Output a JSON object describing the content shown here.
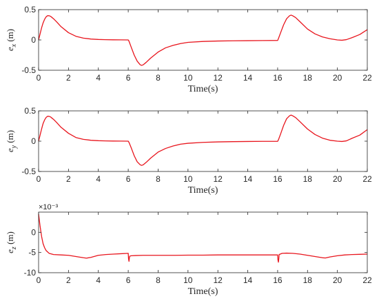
{
  "chart_data": [
    {
      "type": "line",
      "xlabel": "Time(s)",
      "ylabel": {
        "var": "e",
        "sub": "x",
        "unit": "(m)"
      },
      "xlim": [
        0,
        22
      ],
      "ylim": [
        -0.5,
        0.5
      ],
      "xticks": [
        0,
        2,
        4,
        6,
        8,
        10,
        12,
        14,
        16,
        18,
        20,
        22
      ],
      "yticks": [
        -0.5,
        0,
        0.5
      ],
      "ytick_labels": [
        "-0.5",
        "0",
        "0.5"
      ],
      "exponent_label": "",
      "grid": false,
      "series": [
        {
          "color": "#e8141c",
          "x": [
            0,
            0.1,
            0.2,
            0.3,
            0.4,
            0.5,
            0.6,
            0.7,
            0.8,
            0.9,
            1.0,
            1.2,
            1.5,
            2.0,
            2.5,
            3.0,
            3.5,
            4.0,
            4.5,
            5.0,
            5.5,
            6.0,
            6.05,
            6.2,
            6.4,
            6.6,
            6.8,
            6.9,
            7.0,
            7.2,
            7.5,
            8.0,
            8.5,
            9.0,
            9.5,
            10.0,
            11.0,
            12.0,
            13.0,
            14.0,
            15.0,
            16.0,
            16.05,
            16.2,
            16.4,
            16.6,
            16.8,
            16.9,
            17.0,
            17.2,
            17.5,
            18.0,
            18.5,
            19.0,
            19.5,
            20.0,
            20.3,
            20.6,
            21.0,
            21.5,
            22.0
          ],
          "y": [
            0.0,
            0.1,
            0.2,
            0.28,
            0.34,
            0.38,
            0.4,
            0.4,
            0.39,
            0.37,
            0.35,
            0.3,
            0.22,
            0.12,
            0.06,
            0.03,
            0.015,
            0.008,
            0.004,
            0.002,
            0.001,
            0.0,
            -0.02,
            -0.12,
            -0.25,
            -0.35,
            -0.41,
            -0.42,
            -0.41,
            -0.37,
            -0.3,
            -0.2,
            -0.13,
            -0.09,
            -0.06,
            -0.04,
            -0.025,
            -0.018,
            -0.014,
            -0.012,
            -0.01,
            -0.008,
            0.02,
            0.12,
            0.25,
            0.35,
            0.4,
            0.41,
            0.4,
            0.37,
            0.3,
            0.18,
            0.1,
            0.05,
            0.02,
            0.0,
            -0.005,
            0.005,
            0.04,
            0.09,
            0.17
          ]
        }
      ]
    },
    {
      "type": "line",
      "xlabel": "Time(s)",
      "ylabel": {
        "var": "e",
        "sub": "y",
        "unit": "(m)"
      },
      "xlim": [
        0,
        22
      ],
      "ylim": [
        -0.5,
        0.5
      ],
      "xticks": [
        0,
        2,
        4,
        6,
        8,
        10,
        12,
        14,
        16,
        18,
        20,
        22
      ],
      "yticks": [
        -0.5,
        0,
        0.5
      ],
      "ytick_labels": [
        "-0.5",
        "0",
        "0.5"
      ],
      "exponent_label": "",
      "grid": false,
      "series": [
        {
          "color": "#e8141c",
          "x": [
            0,
            0.1,
            0.2,
            0.3,
            0.4,
            0.5,
            0.6,
            0.7,
            0.8,
            0.9,
            1.0,
            1.2,
            1.5,
            2.0,
            2.5,
            3.0,
            3.5,
            4.0,
            4.5,
            5.0,
            5.5,
            6.0,
            6.05,
            6.2,
            6.4,
            6.6,
            6.8,
            6.9,
            7.0,
            7.2,
            7.5,
            8.0,
            8.5,
            9.0,
            9.5,
            10.0,
            11.0,
            12.0,
            13.0,
            14.0,
            15.0,
            16.0,
            16.05,
            16.2,
            16.4,
            16.6,
            16.8,
            16.9,
            17.0,
            17.2,
            17.5,
            18.0,
            18.5,
            19.0,
            19.5,
            20.0,
            20.3,
            20.6,
            21.0,
            21.5,
            22.0
          ],
          "y": [
            0.0,
            0.1,
            0.2,
            0.29,
            0.35,
            0.39,
            0.41,
            0.41,
            0.4,
            0.38,
            0.36,
            0.31,
            0.23,
            0.13,
            0.06,
            0.03,
            0.015,
            0.008,
            0.004,
            0.002,
            0.001,
            0.0,
            -0.02,
            -0.11,
            -0.24,
            -0.34,
            -0.39,
            -0.4,
            -0.39,
            -0.35,
            -0.28,
            -0.18,
            -0.12,
            -0.08,
            -0.05,
            -0.035,
            -0.02,
            -0.012,
            -0.008,
            -0.005,
            -0.003,
            -0.002,
            0.02,
            0.12,
            0.26,
            0.37,
            0.42,
            0.43,
            0.42,
            0.39,
            0.32,
            0.2,
            0.11,
            0.05,
            0.015,
            0.0,
            -0.005,
            0.005,
            0.05,
            0.1,
            0.19
          ]
        }
      ]
    },
    {
      "type": "line",
      "xlabel": "Time(s)",
      "ylabel": {
        "var": "e",
        "sub": "z",
        "unit": "(m)"
      },
      "xlim": [
        0,
        22
      ],
      "ylim": [
        -10,
        5
      ],
      "xticks": [
        0,
        2,
        4,
        6,
        8,
        10,
        12,
        14,
        16,
        18,
        20,
        22
      ],
      "yticks": [
        -10,
        -5,
        0
      ],
      "ytick_labels": [
        "-10",
        "-5",
        "0"
      ],
      "exponent_label": "×10⁻³",
      "grid": false,
      "series": [
        {
          "color": "#e8141c",
          "x": [
            0,
            0.05,
            0.1,
            0.2,
            0.3,
            0.4,
            0.5,
            0.7,
            1.0,
            1.5,
            2.0,
            2.5,
            3.0,
            3.2,
            3.5,
            4.0,
            4.5,
            5.0,
            5.5,
            6.0,
            6.02,
            6.05,
            6.08,
            6.1,
            6.2,
            6.5,
            7.0,
            8.0,
            9.0,
            10.0,
            11.0,
            12.0,
            13.0,
            14.0,
            15.0,
            16.0,
            16.02,
            16.05,
            16.08,
            16.1,
            16.3,
            16.6,
            17.0,
            17.5,
            18.0,
            18.5,
            19.0,
            19.2,
            19.5,
            20.0,
            20.5,
            21.0,
            21.5,
            22.0
          ],
          "y": [
            4.5,
            3.0,
            1.5,
            -1.0,
            -2.8,
            -3.8,
            -4.5,
            -5.2,
            -5.5,
            -5.6,
            -5.7,
            -6.0,
            -6.3,
            -6.4,
            -6.2,
            -5.7,
            -5.5,
            -5.4,
            -5.3,
            -5.2,
            -6.5,
            -7.2,
            -6.2,
            -5.9,
            -5.8,
            -5.75,
            -5.7,
            -5.7,
            -5.7,
            -5.65,
            -5.65,
            -5.6,
            -5.6,
            -5.6,
            -5.6,
            -5.6,
            -6.8,
            -7.4,
            -6.5,
            -5.5,
            -5.2,
            -5.15,
            -5.2,
            -5.4,
            -5.7,
            -6.0,
            -6.3,
            -6.35,
            -6.1,
            -5.8,
            -5.6,
            -5.5,
            -5.45,
            -5.4
          ]
        }
      ]
    }
  ]
}
